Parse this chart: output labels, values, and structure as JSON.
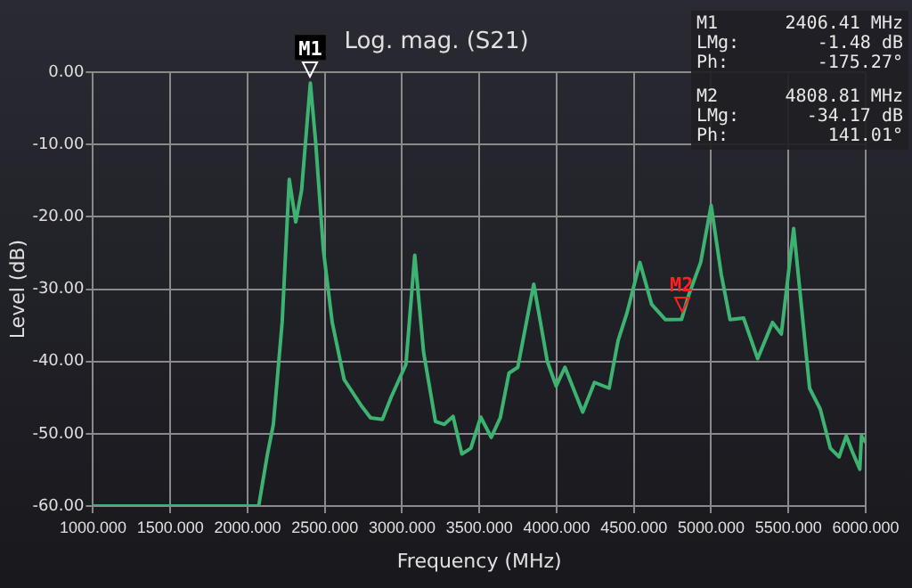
{
  "chart_data": {
    "type": "line",
    "title": "Log. mag. (S21)",
    "xlabel": "Frequency (MHz)",
    "ylabel": "Level (dB)",
    "x": [
      1000,
      2072,
      2129,
      2167,
      2224,
      2270,
      2312,
      2350,
      2406.41,
      2441,
      2491,
      2548,
      2625,
      2739,
      2796,
      2873,
      2930,
      3025,
      3082,
      3139,
      3216,
      3273,
      3330,
      3387,
      3445,
      3509,
      3577,
      3635,
      3692,
      3749,
      3852,
      3940,
      3997,
      4054,
      4169,
      4245,
      4340,
      4398,
      4455,
      4539,
      4615,
      4703,
      4808.81,
      4855,
      4932,
      5000,
      5065,
      5122,
      5210,
      5301,
      5397,
      5454,
      5534,
      5637,
      5706,
      5771,
      5828,
      5874,
      5912,
      5962,
      5973,
      6000
    ],
    "series": [
      {
        "color": "#3cb371",
        "values": [
          -60,
          -60,
          -52.8,
          -48.7,
          -34.6,
          -14.8,
          -20.7,
          -16.3,
          -1.48,
          -9.7,
          -24.6,
          -34.6,
          -42.5,
          -46.2,
          -47.8,
          -48.0,
          -44.9,
          -40.4,
          -25.3,
          -38.7,
          -48.3,
          -48.7,
          -47.6,
          -52.8,
          -52.0,
          -47.7,
          -50.5,
          -47.8,
          -41.6,
          -40.8,
          -29.3,
          -40.0,
          -43.4,
          -40.8,
          -47.0,
          -42.9,
          -43.7,
          -37.1,
          -33.3,
          -26.3,
          -32.1,
          -34.2,
          -34.17,
          -30.8,
          -26.3,
          -18.4,
          -27.9,
          -34.2,
          -34.0,
          -39.6,
          -34.6,
          -36.2,
          -21.6,
          -43.7,
          -46.6,
          -52.0,
          -53.2,
          -50.3,
          -52.4,
          -54.9,
          -50.3,
          -51.2
        ]
      }
    ],
    "xlim": [
      1000,
      6000
    ],
    "ylim": [
      -60,
      0
    ],
    "xticks": [
      {
        "value": 1000,
        "label": "1000.000"
      },
      {
        "value": 1500,
        "label": "1500.000"
      },
      {
        "value": 2000,
        "label": "2000.000"
      },
      {
        "value": 2500,
        "label": "2500.000"
      },
      {
        "value": 3000,
        "label": "3000.000"
      },
      {
        "value": 3500,
        "label": "3500.000"
      },
      {
        "value": 4000,
        "label": "4000.000"
      },
      {
        "value": 4500,
        "label": "4500.000"
      },
      {
        "value": 5000,
        "label": "5000.000"
      },
      {
        "value": 5500,
        "label": "5500.000"
      },
      {
        "value": 6000,
        "label": "6000.000"
      }
    ],
    "yticks": [
      {
        "value": -60,
        "label": "-60.00"
      },
      {
        "value": -50,
        "label": "-50.00"
      },
      {
        "value": -40,
        "label": "-40.00"
      },
      {
        "value": -30,
        "label": "-30.00"
      },
      {
        "value": -20,
        "label": "-20.00"
      },
      {
        "value": -10,
        "label": "-10.00"
      },
      {
        "value": 0,
        "label": "0.00"
      }
    ],
    "grid": true,
    "legend": false,
    "annotations": [
      {
        "text": "M1",
        "x": 2406.41,
        "y": -1.48
      },
      {
        "text": "M2",
        "x": 4808.81,
        "y": -34.17
      },
      "M1 2406.41 MHz",
      "LMg: -1.48 dB",
      "Ph: -175.27°",
      "M2 4808.81 MHz",
      "LMg: -34.17 dB",
      "Ph: 141.01°"
    ]
  }
}
